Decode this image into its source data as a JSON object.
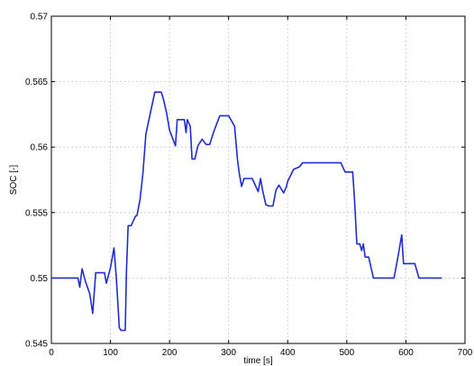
{
  "chart_data": {
    "type": "line",
    "title": "",
    "xlabel": "time [s]",
    "ylabel": "SOC [-]",
    "xlim": [
      0,
      700
    ],
    "ylim": [
      0.545,
      0.57
    ],
    "x_ticks": [
      0,
      100,
      200,
      300,
      400,
      500,
      600,
      700
    ],
    "y_ticks": [
      0.545,
      0.55,
      0.555,
      0.56,
      0.565,
      0.57
    ],
    "x_tick_labels": [
      "0",
      "100",
      "200",
      "300",
      "400",
      "500",
      "600",
      "700"
    ],
    "y_tick_labels": [
      "0.545",
      "0.55",
      "0.555",
      "0.56",
      "0.565",
      "0.57"
    ],
    "grid": true,
    "series_color": "#1f2bd6",
    "series": [
      {
        "x": [
          0,
          45,
          48,
          52,
          58,
          65,
          70,
          75,
          90,
          93,
          100,
          106,
          110,
          115,
          118,
          125,
          127,
          130,
          135,
          142,
          145,
          150,
          155,
          160,
          175,
          178,
          182,
          186,
          190,
          195,
          200,
          210,
          213,
          217,
          220,
          225,
          228,
          230,
          235,
          238,
          243,
          248,
          255,
          262,
          268,
          275,
          285,
          290,
          300,
          310,
          315,
          318,
          322,
          326,
          330,
          333,
          340,
          350,
          354,
          358,
          363,
          368,
          375,
          380,
          385,
          393,
          398,
          400,
          410,
          420,
          425,
          430,
          460,
          490,
          497,
          510,
          513,
          517,
          519,
          522,
          525,
          528,
          531,
          534,
          537,
          540,
          545,
          550,
          555,
          570,
          580,
          588,
          593,
          596,
          610,
          615,
          622,
          630,
          660
        ],
        "y": [
          0.55,
          0.55,
          0.5493,
          0.5507,
          0.5497,
          0.5488,
          0.5473,
          0.5504,
          0.5504,
          0.5496,
          0.5508,
          0.5523,
          0.55,
          0.5462,
          0.546,
          0.546,
          0.5505,
          0.554,
          0.554,
          0.5547,
          0.5548,
          0.556,
          0.558,
          0.561,
          0.5642,
          0.5642,
          0.5642,
          0.5642,
          0.5636,
          0.5626,
          0.5613,
          0.5601,
          0.5621,
          0.5621,
          0.5621,
          0.5621,
          0.5611,
          0.5621,
          0.5616,
          0.5591,
          0.5591,
          0.5601,
          0.5606,
          0.5602,
          0.5602,
          0.5612,
          0.5624,
          0.5624,
          0.5624,
          0.5616,
          0.559,
          0.558,
          0.557,
          0.5576,
          0.5576,
          0.5576,
          0.5576,
          0.5566,
          0.5576,
          0.5566,
          0.5556,
          0.5555,
          0.5555,
          0.5567,
          0.5571,
          0.5565,
          0.557,
          0.5574,
          0.5583,
          0.5585,
          0.5588,
          0.5588,
          0.5588,
          0.5588,
          0.5581,
          0.5581,
          0.556,
          0.5526,
          0.5526,
          0.5526,
          0.5521,
          0.5526,
          0.5516,
          0.5516,
          0.5516,
          0.551,
          0.55,
          0.55,
          0.55,
          0.55,
          0.55,
          0.552,
          0.5533,
          0.5511,
          0.5511,
          0.5511,
          0.55,
          0.55,
          0.55
        ]
      }
    ]
  }
}
